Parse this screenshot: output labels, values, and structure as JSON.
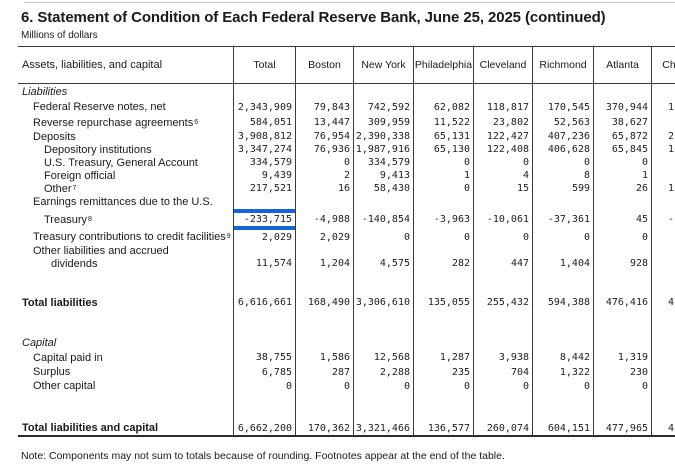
{
  "page": {
    "title": "6. Statement of Condition of Each Federal Reserve Bank, June 25, 2025 (continued)",
    "subtitle": "Millions of dollars",
    "note": "Note: Components may not sum to totals because of rounding. Footnotes appear at the end of the table."
  },
  "colors": {
    "highlight_blue": "#1565d8",
    "border": "#3a3a3a",
    "top_divider": "#cccccc"
  },
  "table": {
    "columns": [
      "Assets, liabilities, and capital",
      "Total",
      "Boston",
      "New York",
      "Philadelphia",
      "Cleveland",
      "Richmond",
      "Atlanta",
      "Chicago"
    ],
    "last_column_clipped": true,
    "rows": [
      {
        "label": "Liabilities",
        "style": "section",
        "values": [
          "",
          "",
          "",
          "",
          "",
          "",
          "",
          ""
        ]
      },
      {
        "label": "Federal Reserve notes, net",
        "indent": 1,
        "values": [
          "2,343,909",
          "79,843",
          "742,592",
          "62,082",
          "118,817",
          "170,545",
          "370,944",
          "1"
        ]
      },
      {
        "label": "Reverse repurchase agreements",
        "sup": "6",
        "indent": 1,
        "values": [
          "584,051",
          "13,447",
          "309,959",
          "11,522",
          "23,802",
          "52,563",
          "38,627",
          ""
        ]
      },
      {
        "label": "Deposits",
        "indent": 1,
        "values": [
          "3,908,812",
          "76,954",
          "2,390,338",
          "65,131",
          "122,427",
          "407,236",
          "65,872",
          "2"
        ]
      },
      {
        "label": "Depository institutions",
        "indent": 2,
        "values": [
          "3,347,274",
          "76,936",
          "1,987,916",
          "65,130",
          "122,408",
          "406,628",
          "65,845",
          "1"
        ]
      },
      {
        "label": "U.S. Treasury, General Account",
        "indent": 2,
        "values": [
          "334,579",
          "0",
          "334,579",
          "0",
          "0",
          "0",
          "0",
          ""
        ]
      },
      {
        "label": "Foreign official",
        "indent": 2,
        "values": [
          "9,439",
          "2",
          "9,413",
          "1",
          "4",
          "8",
          "1",
          ""
        ]
      },
      {
        "label": "Other",
        "sup": "7",
        "indent": 2,
        "values": [
          "217,521",
          "16",
          "58,430",
          "0",
          "15",
          "599",
          "26",
          "1"
        ]
      },
      {
        "label": "Earnings remittances due to the U.S.",
        "indent": 1,
        "values": [
          "",
          "",
          "",
          "",
          "",
          "",
          "",
          ""
        ]
      },
      {
        "label": "Treasury",
        "sup": "8",
        "indent": 2,
        "highlight_col": 0,
        "values": [
          "-233,715",
          "-4,988",
          "-140,854",
          "-3,963",
          "-10,061",
          "-37,361",
          "45",
          "-"
        ]
      },
      {
        "label": "Treasury contributions to credit facilities",
        "sup": "9",
        "indent": 1,
        "values": [
          "2,029",
          "2,029",
          "0",
          "0",
          "0",
          "0",
          "0",
          ""
        ]
      },
      {
        "label": "Other liabilities and accrued",
        "indent": 1,
        "values": [
          "",
          "",
          "",
          "",
          "",
          "",
          "",
          ""
        ]
      },
      {
        "label": "dividends",
        "indent": 3,
        "values": [
          "11,574",
          "1,204",
          "4,575",
          "282",
          "447",
          "1,404",
          "928",
          ""
        ]
      },
      {
        "spacer": true
      },
      {
        "label": "Total liabilities",
        "style": "bold",
        "values": [
          "6,616,661",
          "168,490",
          "3,306,610",
          "135,055",
          "255,432",
          "594,388",
          "476,416",
          "4"
        ]
      },
      {
        "spacer": true
      },
      {
        "label": "Capital",
        "style": "section",
        "values": [
          "",
          "",
          "",
          "",
          "",
          "",
          "",
          ""
        ]
      },
      {
        "label": "Capital paid in",
        "indent": 1,
        "values": [
          "38,755",
          "1,586",
          "12,568",
          "1,287",
          "3,938",
          "8,442",
          "1,319",
          ""
        ]
      },
      {
        "label": "Surplus",
        "indent": 1,
        "values": [
          "6,785",
          "287",
          "2,288",
          "235",
          "704",
          "1,322",
          "230",
          ""
        ]
      },
      {
        "label": "Other capital",
        "indent": 1,
        "values": [
          "0",
          "0",
          "0",
          "0",
          "0",
          "0",
          "0",
          ""
        ]
      },
      {
        "spacer": true
      },
      {
        "label": "Total liabilities and capital",
        "style": "bold",
        "values": [
          "6,662,200",
          "170,362",
          "3,321,466",
          "136,577",
          "260,074",
          "604,151",
          "477,965",
          "4"
        ]
      }
    ]
  }
}
